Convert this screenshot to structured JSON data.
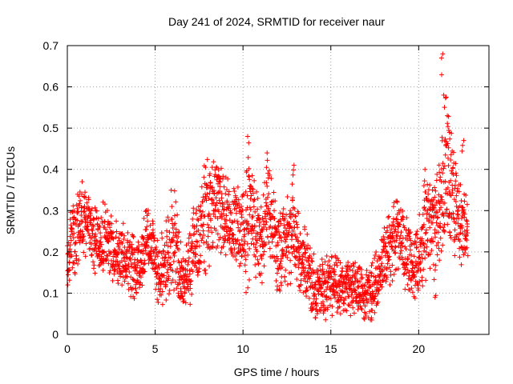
{
  "chart_data": {
    "type": "scatter",
    "title": "Day 241 of 2024, SRMTID for receiver naur",
    "xlabel": "GPS time / hours",
    "ylabel": "SRMTID / TECUs",
    "xlim": [
      0,
      24
    ],
    "ylim": [
      0,
      0.7
    ],
    "xticks": [
      0,
      5,
      10,
      15,
      20
    ],
    "xtick_labels": [
      "0",
      "5",
      "10",
      "15",
      "20"
    ],
    "yticks": [
      0,
      0.1,
      0.2,
      0.3,
      0.4,
      0.5,
      0.6,
      0.7
    ],
    "ytick_labels": [
      "0",
      "0.1",
      "0.2",
      "0.3",
      "0.4",
      "0.5",
      "0.6",
      "0.7"
    ],
    "grid": true,
    "marker": "+",
    "marker_color": "#ff0000",
    "series": [
      {
        "name": "SRMTID",
        "x": [
          0.0,
          0.3,
          0.6,
          0.9,
          1.2,
          1.5,
          1.8,
          2.1,
          2.4,
          2.7,
          3.0,
          3.3,
          3.6,
          3.9,
          4.2,
          4.5,
          4.8,
          5.1,
          5.4,
          5.7,
          6.0,
          6.3,
          6.6,
          6.9,
          7.2,
          7.5,
          7.8,
          8.1,
          8.4,
          8.7,
          9.0,
          9.3,
          9.6,
          9.9,
          10.2,
          10.5,
          10.8,
          11.1,
          11.4,
          11.7,
          12.0,
          12.3,
          12.6,
          12.9,
          13.2,
          13.5,
          13.8,
          14.1,
          14.4,
          14.7,
          15.0,
          15.3,
          15.6,
          15.9,
          16.2,
          16.5,
          16.8,
          17.1,
          17.4,
          17.7,
          18.0,
          18.3,
          18.6,
          18.9,
          19.2,
          19.5,
          19.8,
          20.1,
          20.4,
          20.7,
          21.0,
          21.3,
          21.6,
          21.9,
          22.2,
          22.5,
          22.8
        ],
        "y": [
          0.2,
          0.23,
          0.25,
          0.28,
          0.26,
          0.24,
          0.22,
          0.24,
          0.22,
          0.2,
          0.18,
          0.19,
          0.17,
          0.16,
          0.18,
          0.24,
          0.22,
          0.17,
          0.15,
          0.19,
          0.24,
          0.18,
          0.14,
          0.16,
          0.2,
          0.24,
          0.28,
          0.3,
          0.34,
          0.32,
          0.28,
          0.26,
          0.27,
          0.26,
          0.24,
          0.32,
          0.24,
          0.22,
          0.3,
          0.25,
          0.2,
          0.22,
          0.24,
          0.25,
          0.2,
          0.18,
          0.14,
          0.12,
          0.11,
          0.12,
          0.12,
          0.13,
          0.12,
          0.11,
          0.12,
          0.11,
          0.1,
          0.1,
          0.11,
          0.13,
          0.18,
          0.21,
          0.22,
          0.24,
          0.2,
          0.18,
          0.17,
          0.2,
          0.24,
          0.28,
          0.25,
          0.32,
          0.42,
          0.35,
          0.28,
          0.27,
          0.24
        ],
        "spread": [
          0.08,
          0.09,
          0.1,
          0.11,
          0.1,
          0.1,
          0.09,
          0.09,
          0.08,
          0.09,
          0.1,
          0.09,
          0.1,
          0.08,
          0.09,
          0.1,
          0.1,
          0.09,
          0.1,
          0.12,
          0.14,
          0.12,
          0.09,
          0.1,
          0.12,
          0.14,
          0.15,
          0.15,
          0.14,
          0.13,
          0.12,
          0.11,
          0.12,
          0.15,
          0.17,
          0.16,
          0.12,
          0.11,
          0.14,
          0.11,
          0.12,
          0.12,
          0.13,
          0.12,
          0.11,
          0.1,
          0.09,
          0.08,
          0.08,
          0.09,
          0.09,
          0.08,
          0.09,
          0.08,
          0.08,
          0.08,
          0.07,
          0.08,
          0.08,
          0.09,
          0.1,
          0.1,
          0.11,
          0.1,
          0.1,
          0.09,
          0.1,
          0.11,
          0.12,
          0.12,
          0.14,
          0.16,
          0.2,
          0.16,
          0.13,
          0.12,
          0.1
        ]
      }
    ],
    "peaks": [
      {
        "x": 10.3,
        "y": 0.48
      },
      {
        "x": 11.4,
        "y": 0.44
      },
      {
        "x": 12.9,
        "y": 0.41
      },
      {
        "x": 20.3,
        "y": 0.4
      },
      {
        "x": 21.3,
        "y": 0.68
      },
      {
        "x": 21.5,
        "y": 0.58
      },
      {
        "x": 21.7,
        "y": 0.53
      },
      {
        "x": 22.5,
        "y": 0.47
      }
    ],
    "lows": [
      {
        "x": 0.05,
        "y": 0.12
      },
      {
        "x": 6.4,
        "y": 0.09
      },
      {
        "x": 14.1,
        "y": 0.04
      },
      {
        "x": 17.3,
        "y": 0.04
      },
      {
        "x": 21.0,
        "y": 0.09
      }
    ]
  }
}
